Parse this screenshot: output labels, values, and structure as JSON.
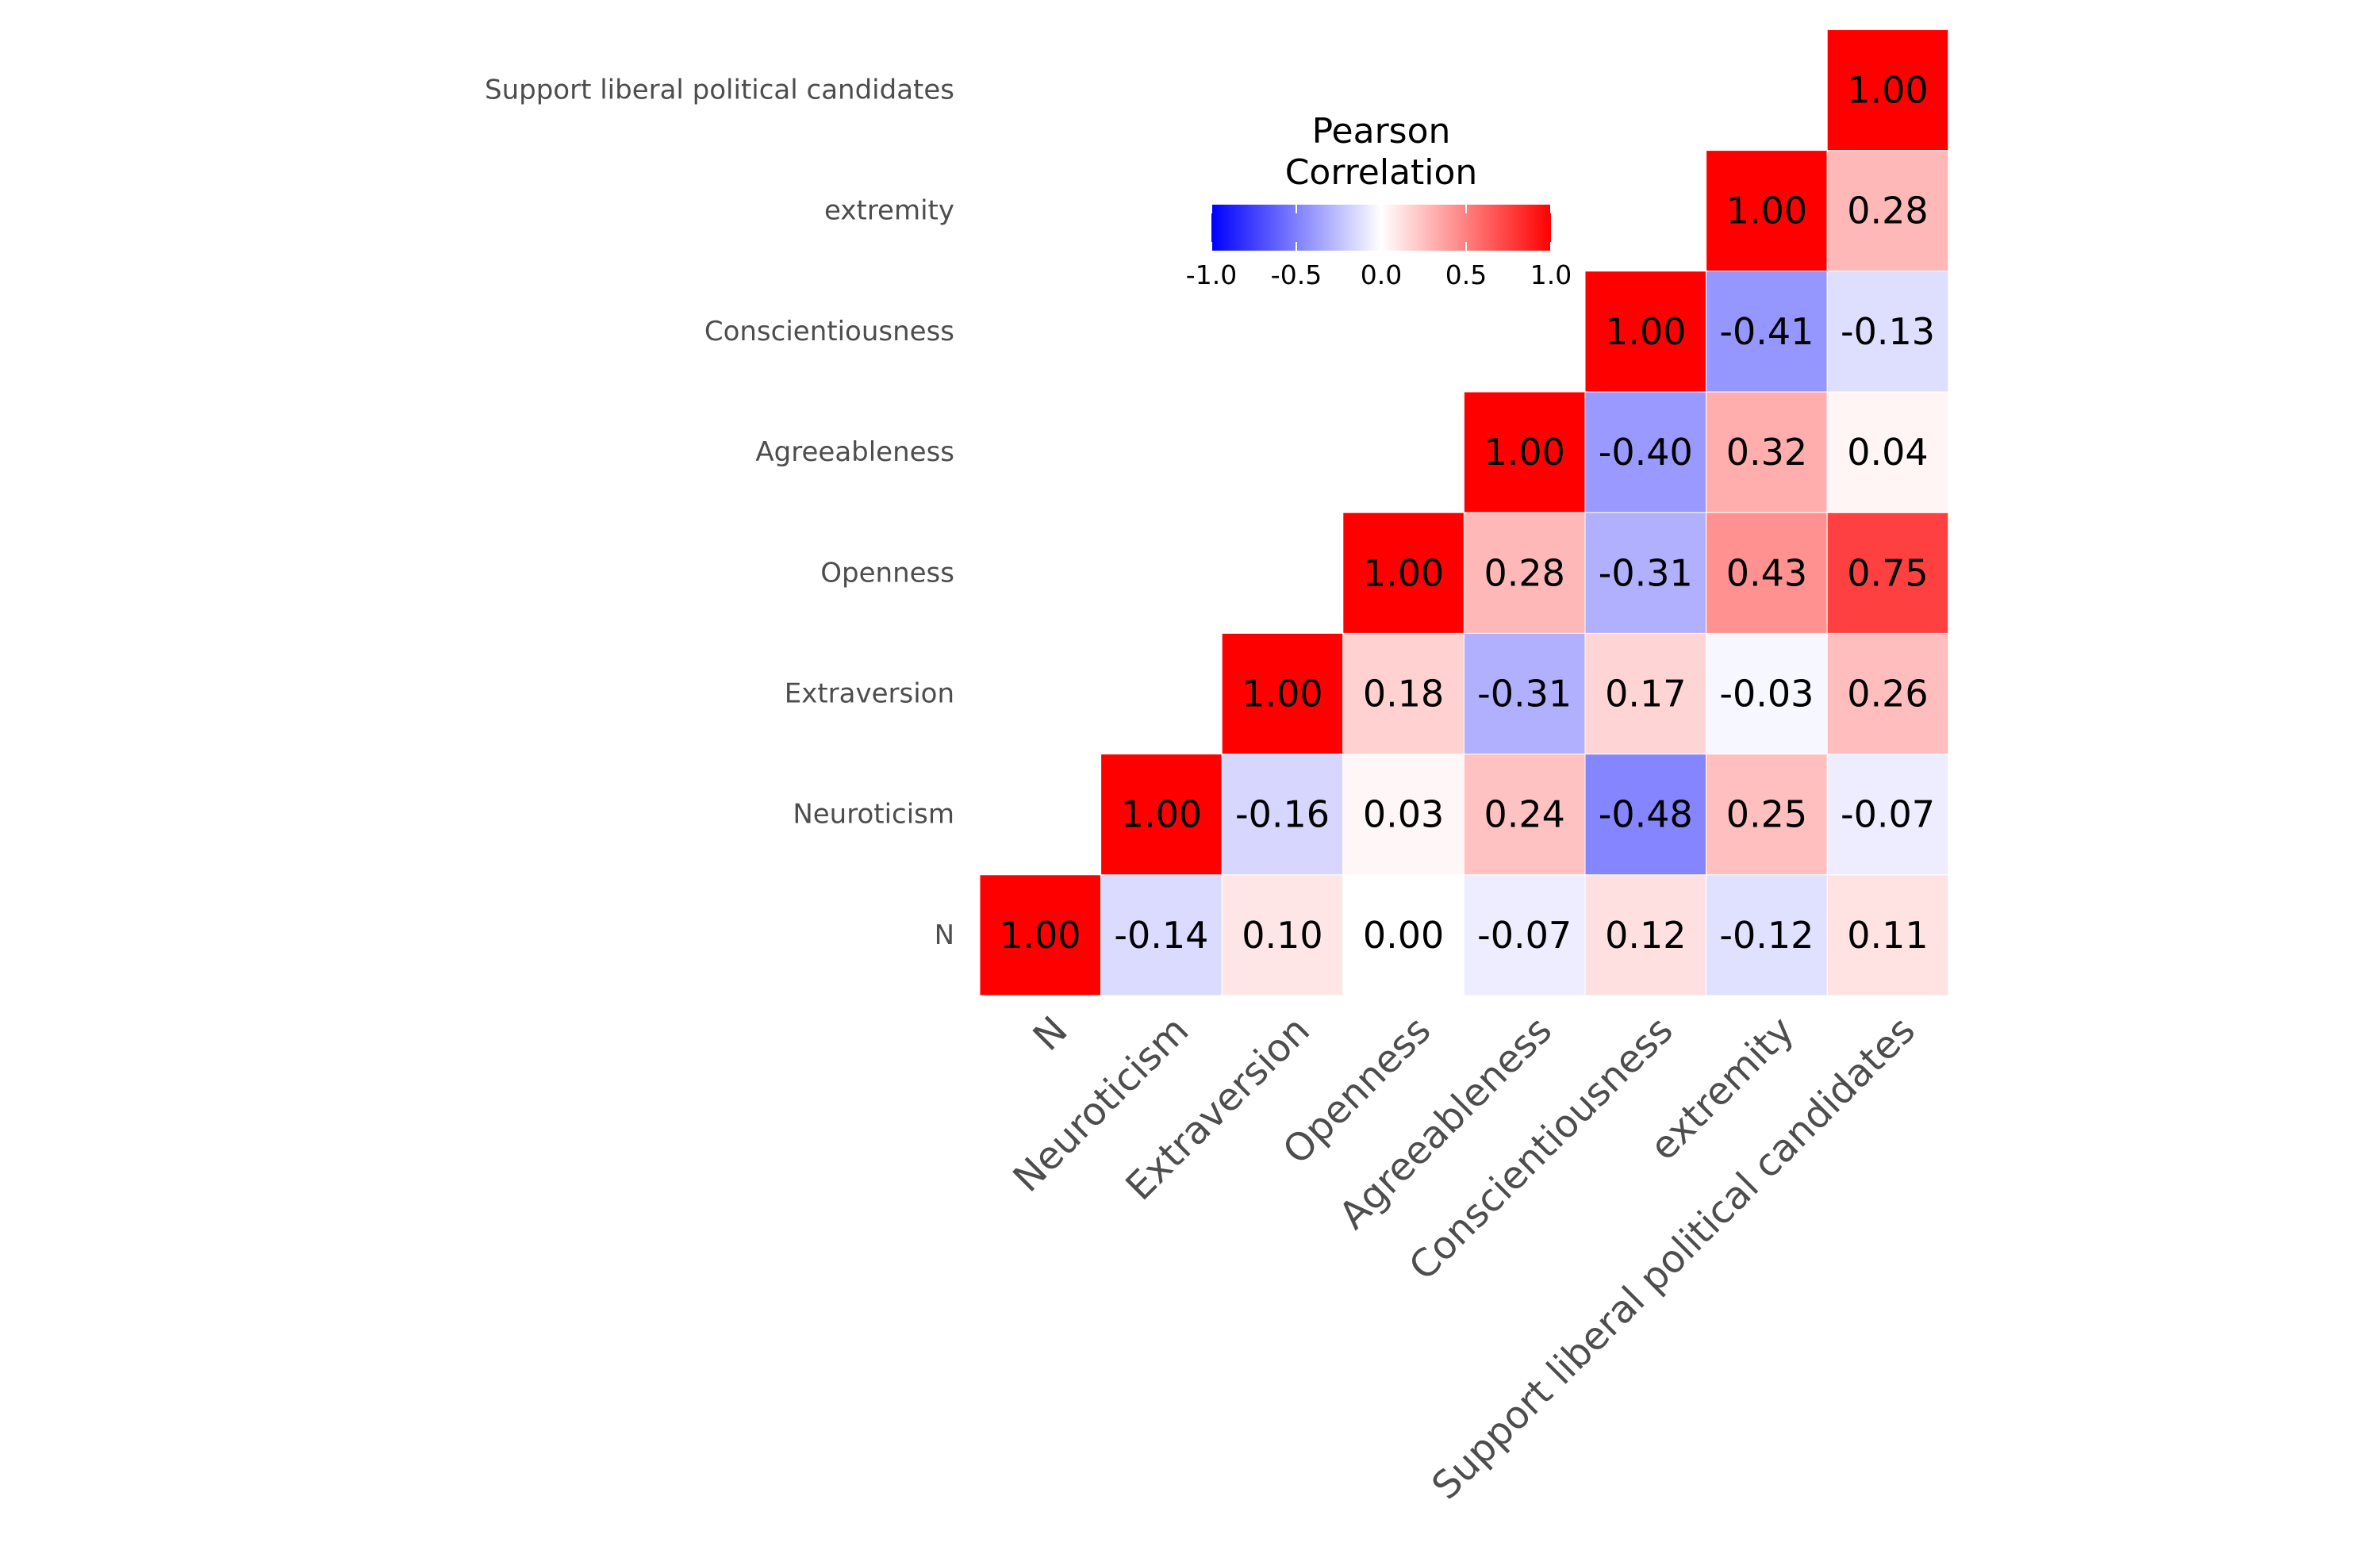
{
  "chart_data": {
    "type": "heatmap",
    "variables": [
      "N",
      "Neuroticism",
      "Extraversion",
      "Openness",
      "Agreeableness",
      "Conscientiousness",
      "extremity",
      "Support liberal political candidates"
    ],
    "matrix_lower_triangle": [
      [
        1.0
      ],
      [
        -0.14,
        1.0
      ],
      [
        0.1,
        -0.16,
        1.0
      ],
      [
        0.0,
        0.03,
        0.18,
        1.0
      ],
      [
        -0.07,
        0.24,
        -0.31,
        0.28,
        1.0
      ],
      [
        0.12,
        -0.48,
        0.17,
        -0.31,
        -0.4,
        1.0
      ],
      [
        -0.12,
        0.25,
        -0.03,
        0.43,
        0.32,
        -0.41,
        1.0
      ],
      [
        0.11,
        -0.07,
        0.26,
        0.75,
        0.04,
        -0.13,
        0.28,
        1.0
      ]
    ],
    "value_format": "0.00",
    "legend": {
      "title_lines": [
        "Pearson",
        "Correlation"
      ],
      "ticks": [
        -1.0,
        -0.5,
        0.0,
        0.5,
        1.0
      ],
      "tick_labels": [
        "-1.0",
        "-0.5",
        "0.0",
        "0.5",
        "1.0"
      ],
      "range": [
        -1,
        1
      ],
      "low_color": "#0000ff",
      "mid_color": "#ffffff",
      "high_color": "#ff0000",
      "placement": "top-center"
    },
    "grid": false
  }
}
